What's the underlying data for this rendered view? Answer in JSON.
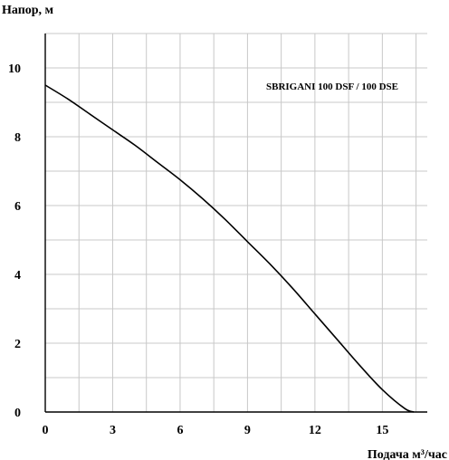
{
  "chart_data": {
    "type": "line",
    "ylabel": "Напор, м",
    "xlabel": "Подача  м³/час",
    "annotation": "SBRIGANI 100 DSF / 100 DSE",
    "xlim": [
      0,
      17
    ],
    "ylim": [
      0,
      11
    ],
    "xticks": [
      0,
      3,
      6,
      9,
      12,
      15
    ],
    "yticks": [
      0,
      2,
      4,
      6,
      8,
      10
    ],
    "grid": true,
    "series": [
      {
        "x": [
          0,
          1,
          2,
          3,
          4,
          5,
          6,
          7,
          8,
          9,
          10,
          11,
          12,
          13,
          14,
          15,
          16,
          16.4
        ],
        "y": [
          9.5,
          9.1,
          8.65,
          8.2,
          7.75,
          7.25,
          6.75,
          6.2,
          5.6,
          4.95,
          4.3,
          3.6,
          2.85,
          2.1,
          1.35,
          0.65,
          0.1,
          0
        ]
      }
    ]
  }
}
